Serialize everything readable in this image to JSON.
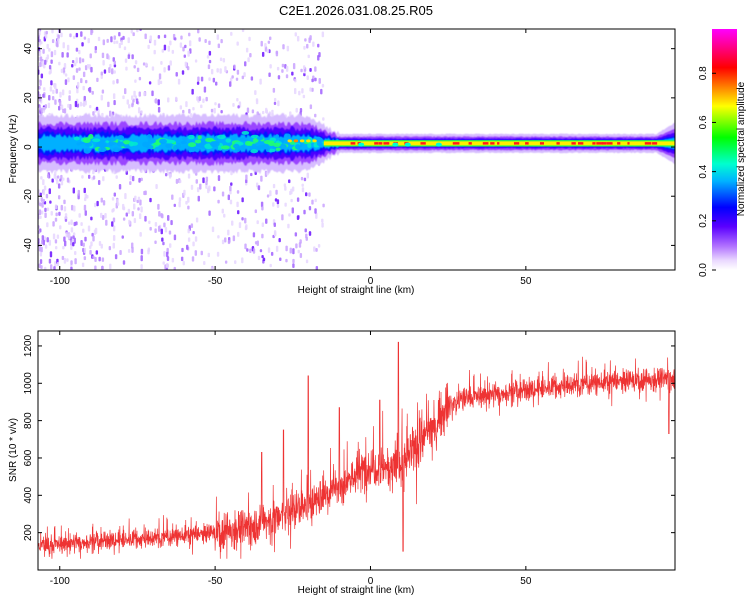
{
  "figure_title": "C2E1.2026.031.08.25.R05",
  "chart_data": [
    {
      "type": "heatmap",
      "title": "C2E1.2026.031.08.25.R05",
      "xlabel": "Height of straight line (km)",
      "ylabel": "Frequency (Hz)",
      "xlim": [
        -107,
        98
      ],
      "ylim": [
        -50,
        48
      ],
      "x_ticks": [
        -100,
        -50,
        0,
        50
      ],
      "x_tick_labels": [
        "-100",
        "-50",
        "0",
        "50"
      ],
      "y_ticks": [
        -40,
        -20,
        0,
        20,
        40
      ],
      "y_tick_labels": [
        "-40",
        "-20",
        "0",
        "20",
        "40"
      ],
      "colorbar": {
        "label": "Normalized spectral amplitude",
        "range": [
          0.0,
          0.98
        ],
        "ticks": [
          0.0,
          0.2,
          0.4,
          0.6,
          0.8
        ],
        "tick_labels": [
          "0.0",
          "0.2",
          "0.4",
          "0.6",
          "0.8"
        ],
        "colormap": "rainbow (white-violet-blue-cyan-green-yellow-red-magenta)"
      },
      "features": {
        "ridge_frequency_hz": 1.5,
        "band_halfwidth_left_hz": 6,
        "band_halfwidth_right_hz": 2,
        "scatter_noise_extent_km": [
          -107,
          -15
        ]
      }
    },
    {
      "type": "line",
      "xlabel": "Height of straight line (km)",
      "ylabel": "SNR (10 * v/v)",
      "xlim": [
        -107,
        98
      ],
      "ylim": [
        0,
        1280
      ],
      "x_ticks": [
        -100,
        -50,
        0,
        50
      ],
      "x_tick_labels": [
        "-100",
        "-50",
        "0",
        "50"
      ],
      "y_ticks": [
        200,
        400,
        600,
        800,
        1000,
        1200
      ],
      "y_tick_labels": [
        "200",
        "400",
        "600",
        "800",
        "1000",
        "1200"
      ],
      "series": [
        {
          "name": "SNR",
          "color": "#ee3333",
          "trend_x": [
            -107,
            -90,
            -70,
            -50,
            -40,
            -30,
            -20,
            -10,
            0,
            10,
            20,
            25,
            30,
            40,
            50,
            60,
            70,
            80,
            90,
            98
          ],
          "trend_y": [
            130,
            150,
            170,
            200,
            230,
            280,
            350,
            450,
            560,
            560,
            770,
            880,
            920,
            940,
            960,
            980,
            1000,
            1010,
            1020,
            1030
          ],
          "spikes": [
            {
              "x": -35,
              "y": 630
            },
            {
              "x": -28,
              "y": 750
            },
            {
              "x": -20,
              "y": 1040
            },
            {
              "x": -10,
              "y": 870
            },
            {
              "x": 3,
              "y": 910
            },
            {
              "x": 9,
              "y": 1220
            },
            {
              "x": 10.5,
              "y": 100
            },
            {
              "x": 96,
              "y": 730
            }
          ]
        }
      ]
    }
  ]
}
